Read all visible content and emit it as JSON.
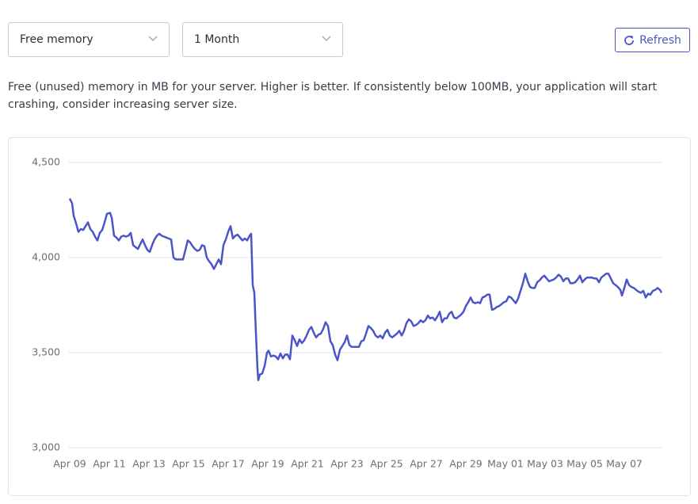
{
  "controls": {
    "metric": "Free memory",
    "period": "1 Month",
    "refresh": "Refresh"
  },
  "description": [
    "Free (unused) memory in MB for your server. Higher is better. If consistently below 100MB, your application will start",
    "crashing, consider increasing server size."
  ],
  "chart_data": {
    "type": "line",
    "color": "#4c55c7",
    "grid": true,
    "ylim": [
      3000,
      4500
    ],
    "yticks": [
      {
        "value": 3000,
        "label": "3,000"
      },
      {
        "value": 3500,
        "label": "3,500"
      },
      {
        "value": 4000,
        "label": "4,000"
      },
      {
        "value": 4500,
        "label": "4,500"
      }
    ],
    "xlim": [
      0,
      29.88
    ],
    "xticks": [
      {
        "value": 0,
        "label": "Apr 09"
      },
      {
        "value": 2,
        "label": "Apr 11"
      },
      {
        "value": 4,
        "label": "Apr 13"
      },
      {
        "value": 6,
        "label": "Apr 15"
      },
      {
        "value": 8,
        "label": "Apr 17"
      },
      {
        "value": 10,
        "label": "Apr 19"
      },
      {
        "value": 12,
        "label": "Apr 21"
      },
      {
        "value": 14,
        "label": "Apr 23"
      },
      {
        "value": 16,
        "label": "Apr 25"
      },
      {
        "value": 18,
        "label": "Apr 27"
      },
      {
        "value": 20,
        "label": "Apr 29"
      },
      {
        "value": 22,
        "label": "May 01"
      },
      {
        "value": 24,
        "label": "May 03"
      },
      {
        "value": 26,
        "label": "May 05"
      },
      {
        "value": 28,
        "label": "May 07"
      }
    ],
    "x": [
      0,
      0.12,
      0.2,
      0.32,
      0.44,
      0.56,
      0.68,
      0.8,
      0.92,
      1.04,
      1.16,
      1.28,
      1.4,
      1.52,
      1.64,
      1.76,
      1.88,
      2.04,
      2.12,
      2.24,
      2.36,
      2.48,
      2.6,
      2.72,
      2.84,
      2.96,
      3.08,
      3.2,
      3.32,
      3.44,
      3.56,
      3.68,
      3.8,
      3.92,
      4.04,
      4.16,
      4.28,
      4.4,
      4.52,
      4.64,
      4.76,
      4.88,
      5,
      5.12,
      5.24,
      5.36,
      5.48,
      5.6,
      5.72,
      5.84,
      5.96,
      6.08,
      6.2,
      6.32,
      6.44,
      6.56,
      6.68,
      6.8,
      6.92,
      7.04,
      7.16,
      7.28,
      7.4,
      7.52,
      7.64,
      7.76,
      7.88,
      8,
      8.12,
      8.24,
      8.36,
      8.48,
      8.6,
      8.72,
      8.84,
      8.96,
      9.08,
      9.16,
      9.24,
      9.32,
      9.4,
      9.48,
      9.52,
      9.6,
      9.72,
      9.84,
      9.96,
      10.04,
      10.16,
      10.28,
      10.4,
      10.52,
      10.64,
      10.76,
      10.88,
      11,
      11.12,
      11.24,
      11.36,
      11.48,
      11.6,
      11.72,
      11.84,
      11.96,
      12.08,
      12.2,
      12.32,
      12.44,
      12.56,
      12.68,
      12.8,
      12.92,
      13.04,
      13.16,
      13.28,
      13.4,
      13.52,
      13.64,
      13.76,
      13.88,
      14,
      14.12,
      14.24,
      14.36,
      14.48,
      14.6,
      14.72,
      14.84,
      14.96,
      15.08,
      15.2,
      15.32,
      15.44,
      15.56,
      15.68,
      15.8,
      15.92,
      16.04,
      16.16,
      16.28,
      16.4,
      16.52,
      16.64,
      16.76,
      16.88,
      17,
      17.12,
      17.24,
      17.36,
      17.48,
      17.6,
      17.72,
      17.84,
      17.96,
      18.08,
      18.2,
      18.32,
      18.44,
      18.56,
      18.68,
      18.8,
      18.92,
      19.04,
      19.16,
      19.28,
      19.4,
      19.52,
      19.64,
      19.76,
      19.88,
      20,
      20.12,
      20.24,
      20.36,
      20.48,
      20.6,
      20.72,
      20.84,
      20.96,
      21.08,
      21.2,
      21.32,
      21.44,
      21.56,
      21.68,
      21.8,
      21.92,
      22.04,
      22.16,
      22.28,
      22.4,
      22.52,
      22.64,
      22.76,
      22.88,
      23,
      23.12,
      23.24,
      23.36,
      23.48,
      23.6,
      23.72,
      23.84,
      23.96,
      24.08,
      24.2,
      24.32,
      24.44,
      24.56,
      24.68,
      24.8,
      24.92,
      25.04,
      25.16,
      25.28,
      25.4,
      25.52,
      25.64,
      25.76,
      25.88,
      26,
      26.12,
      26.24,
      26.36,
      26.48,
      26.6,
      26.72,
      26.84,
      26.96,
      27.08,
      27.2,
      27.32,
      27.44,
      27.56,
      27.68,
      27.8,
      27.88,
      28,
      28.12,
      28.24,
      28.36,
      28.48,
      28.6,
      28.72,
      28.84,
      28.96,
      29.08,
      29.2,
      29.32,
      29.44,
      29.56,
      29.68,
      29.8,
      29.88
    ],
    "values": [
      4310,
      4285,
      4220,
      4180,
      4135,
      4150,
      4145,
      4165,
      4185,
      4150,
      4135,
      4110,
      4090,
      4130,
      4145,
      4185,
      4230,
      4235,
      4210,
      4115,
      4105,
      4090,
      4110,
      4115,
      4110,
      4115,
      4130,
      4065,
      4055,
      4045,
      4070,
      4095,
      4065,
      4040,
      4030,
      4065,
      4095,
      4115,
      4125,
      4115,
      4110,
      4105,
      4100,
      4095,
      4000,
      3990,
      3990,
      3990,
      3990,
      4040,
      4090,
      4080,
      4060,
      4045,
      4035,
      4040,
      4065,
      4060,
      4000,
      3980,
      3965,
      3940,
      3965,
      3990,
      3965,
      4065,
      4095,
      4135,
      4165,
      4100,
      4115,
      4120,
      4105,
      4090,
      4100,
      4090,
      4115,
      4125,
      3855,
      3815,
      3605,
      3415,
      3355,
      3385,
      3390,
      3430,
      3500,
      3510,
      3480,
      3485,
      3480,
      3465,
      3495,
      3470,
      3490,
      3490,
      3465,
      3590,
      3565,
      3535,
      3570,
      3550,
      3565,
      3590,
      3620,
      3635,
      3605,
      3580,
      3595,
      3600,
      3625,
      3660,
      3640,
      3560,
      3540,
      3490,
      3460,
      3515,
      3535,
      3555,
      3590,
      3540,
      3530,
      3530,
      3530,
      3530,
      3560,
      3565,
      3600,
      3640,
      3630,
      3615,
      3590,
      3580,
      3590,
      3575,
      3605,
      3620,
      3590,
      3580,
      3590,
      3600,
      3615,
      3590,
      3615,
      3655,
      3675,
      3665,
      3640,
      3645,
      3655,
      3670,
      3660,
      3670,
      3695,
      3680,
      3685,
      3670,
      3690,
      3715,
      3660,
      3680,
      3680,
      3705,
      3715,
      3685,
      3680,
      3690,
      3700,
      3715,
      3745,
      3765,
      3790,
      3765,
      3760,
      3765,
      3760,
      3790,
      3795,
      3805,
      3805,
      3725,
      3730,
      3740,
      3745,
      3755,
      3765,
      3770,
      3795,
      3790,
      3775,
      3760,
      3785,
      3825,
      3865,
      3915,
      3875,
      3845,
      3840,
      3840,
      3870,
      3880,
      3895,
      3905,
      3890,
      3875,
      3880,
      3885,
      3895,
      3910,
      3900,
      3875,
      3890,
      3890,
      3865,
      3865,
      3870,
      3885,
      3905,
      3870,
      3885,
      3895,
      3895,
      3895,
      3890,
      3890,
      3870,
      3895,
      3905,
      3915,
      3915,
      3890,
      3865,
      3855,
      3845,
      3830,
      3800,
      3840,
      3885,
      3855,
      3845,
      3840,
      3830,
      3820,
      3815,
      3825,
      3790,
      3810,
      3805,
      3825,
      3830,
      3840,
      3830,
      3815
    ]
  }
}
